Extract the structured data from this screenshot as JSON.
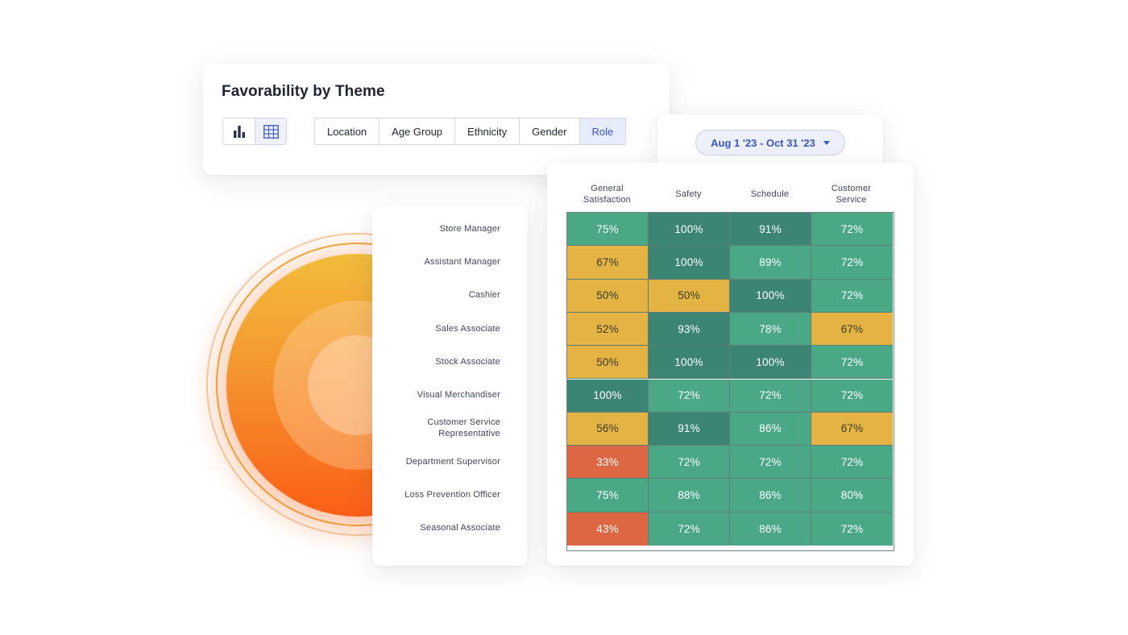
{
  "panel": {
    "title": "Favorability by Theme",
    "filters": [
      "Location",
      "Age Group",
      "Ethnicity",
      "Gender",
      "Role"
    ],
    "active_filter": "Role",
    "view_modes": [
      {
        "icon": "bar-chart-icon",
        "active": false
      },
      {
        "icon": "table-grid-icon",
        "active": true
      }
    ]
  },
  "date_range": {
    "label": "Aug 1 '23 - Oct 31 '23"
  },
  "heatmap": {
    "columns": [
      "General Satisfaction",
      "Safety",
      "Schedule",
      "Customer Service"
    ],
    "column_lines": [
      [
        "General",
        "Satisfaction"
      ],
      [
        "Safety"
      ],
      [
        "Schedule"
      ],
      [
        "Customer",
        "Service"
      ]
    ],
    "rows": [
      {
        "label": "Store Manager",
        "lines": [
          "Store Manager"
        ],
        "values": [
          "75%",
          "100%",
          "91%",
          "72%"
        ],
        "levels": [
          "mid",
          "dark",
          "dark",
          "mid"
        ]
      },
      {
        "label": "Assistant Manager",
        "lines": [
          "Assistant Manager"
        ],
        "values": [
          "67%",
          "100%",
          "89%",
          "72%"
        ],
        "levels": [
          "warn",
          "dark",
          "mid",
          "mid"
        ]
      },
      {
        "label": "Cashier",
        "lines": [
          "Cashier"
        ],
        "values": [
          "50%",
          "50%",
          "100%",
          "72%"
        ],
        "levels": [
          "warn",
          "warn",
          "dark",
          "mid"
        ]
      },
      {
        "label": "Sales Associate",
        "lines": [
          "Sales Associate"
        ],
        "values": [
          "52%",
          "93%",
          "78%",
          "67%"
        ],
        "levels": [
          "warn",
          "dark",
          "mid",
          "warn"
        ]
      },
      {
        "label": "Stock Associate",
        "lines": [
          "Stock Associate"
        ],
        "values": [
          "50%",
          "100%",
          "100%",
          "72%"
        ],
        "levels": [
          "warn",
          "dark",
          "dark",
          "mid"
        ]
      },
      {
        "label": "Visual Merchandiser",
        "lines": [
          "Visual Merchandiser"
        ],
        "values": [
          "100%",
          "72%",
          "72%",
          "72%"
        ],
        "levels": [
          "dark",
          "mid",
          "mid",
          "mid"
        ]
      },
      {
        "label": "Customer Service Representative",
        "lines": [
          "Customer Service",
          "Representative"
        ],
        "values": [
          "56%",
          "91%",
          "86%",
          "67%"
        ],
        "levels": [
          "warn",
          "dark",
          "mid",
          "warn"
        ]
      },
      {
        "label": "Department Supervisor",
        "lines": [
          "Department Supervisor"
        ],
        "values": [
          "33%",
          "72%",
          "72%",
          "72%"
        ],
        "levels": [
          "bad",
          "mid",
          "mid",
          "mid"
        ]
      },
      {
        "label": "Loss Prevention Officer",
        "lines": [
          "Loss Prevention Officer"
        ],
        "values": [
          "75%",
          "88%",
          "86%",
          "80%"
        ],
        "levels": [
          "mid",
          "mid",
          "mid",
          "mid"
        ]
      },
      {
        "label": "Seasonal Associate",
        "lines": [
          "Seasonal Associate"
        ],
        "values": [
          "43%",
          "72%",
          "86%",
          "72%"
        ],
        "levels": [
          "bad",
          "mid",
          "mid",
          "mid"
        ]
      }
    ],
    "level_colors": {
      "dark": "#3c8575",
      "mid": "#4aa887",
      "warn": "#e3b444",
      "bad": "#db6843"
    }
  },
  "colors": {
    "accent": "#3a57c9",
    "orb_top": "#f2bd3c",
    "orb_bottom": "#fb5e16"
  }
}
